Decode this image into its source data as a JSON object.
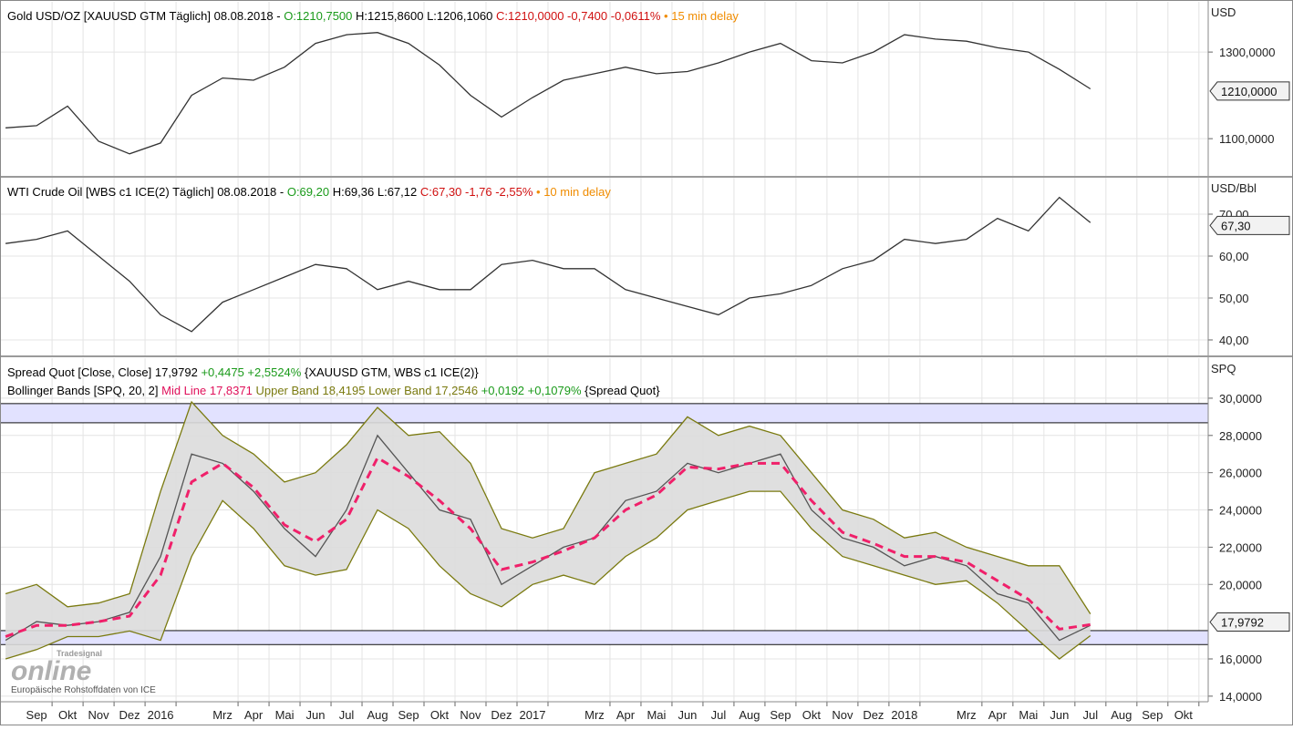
{
  "chart_data": [
    {
      "type": "line",
      "header": [
        [
          {
            "text": "Gold USD/OZ [XAUUSD GTM Täglich] 08.08.2018 - ",
            "color": "#000000"
          },
          {
            "text": "O:1210,7500",
            "color": "#1a9a1a"
          },
          {
            "text": " H:1215,8600 L:1206,1060 ",
            "color": "#000000"
          },
          {
            "text": "C:1210,0000 -0,7400 -0,0611%",
            "color": "#d01010"
          },
          {
            "text": " • 15 min delay",
            "color": "#f08c00"
          }
        ]
      ],
      "unit": "USD",
      "xlim": [
        -1.18,
        37.8
      ],
      "ylim": [
        1014,
        1416
      ],
      "yticks": [
        {
          "value": 1300,
          "label": "1300,0000"
        },
        {
          "value": 1100,
          "label": "1100,0000"
        }
      ],
      "x": [
        -1,
        0,
        1,
        2,
        3,
        4,
        5,
        6,
        7,
        8,
        9,
        10,
        11,
        12,
        13,
        14,
        15,
        16,
        17,
        18,
        19,
        20,
        21,
        22,
        23,
        24,
        25,
        26,
        27,
        28,
        29,
        30,
        31,
        32,
        33,
        34
      ],
      "series": [
        {
          "color": "#333333",
          "values": [
            1125,
            1130,
            1175,
            1094,
            1065,
            1090,
            1200,
            1240,
            1235,
            1265,
            1320,
            1340,
            1345,
            1320,
            1270,
            1200,
            1150,
            1195,
            1235,
            1250,
            1265,
            1250,
            1255,
            1275,
            1300,
            1320,
            1280,
            1275,
            1300,
            1340,
            1330,
            1325,
            1310,
            1300,
            1260,
            1215
          ]
        }
      ],
      "last": {
        "value": 1210,
        "label": "1210,0000"
      }
    },
    {
      "type": "line",
      "header": [
        [
          {
            "text": "WTI Crude Oil [WBS c1 ICE(2) Täglich] 08.08.2018 - ",
            "color": "#000000"
          },
          {
            "text": "O:69,20",
            "color": "#1a9a1a"
          },
          {
            "text": " H:69,36 L:67,12 ",
            "color": "#000000"
          },
          {
            "text": "C:67,30 -1,76 -2,55%",
            "color": "#d01010"
          },
          {
            "text": " • 10 min delay",
            "color": "#f08c00"
          }
        ]
      ],
      "unit": "USD/Bbl",
      "xlim": [
        -1.18,
        37.8
      ],
      "ylim": [
        36.3,
        78.7
      ],
      "yticks": [
        {
          "value": 70,
          "label": "70,00"
        },
        {
          "value": 60,
          "label": "60,00"
        },
        {
          "value": 50,
          "label": "50,00"
        },
        {
          "value": 40,
          "label": "40,00"
        }
      ],
      "x": [
        -1,
        0,
        1,
        2,
        3,
        4,
        5,
        6,
        7,
        8,
        9,
        10,
        11,
        12,
        13,
        14,
        15,
        16,
        17,
        18,
        19,
        20,
        21,
        22,
        23,
        24,
        25,
        26,
        27,
        28,
        29,
        30,
        31,
        32,
        33,
        34
      ],
      "series": [
        {
          "color": "#333333",
          "values": [
            63,
            64,
            66,
            60,
            54,
            46,
            42,
            49,
            52,
            55,
            58,
            57,
            52,
            54,
            52,
            52,
            58,
            59,
            57,
            57,
            52,
            50,
            48,
            46,
            50,
            51,
            53,
            57,
            59,
            64,
            63,
            64,
            69,
            66,
            74,
            68
          ]
        }
      ],
      "last": {
        "value": 67.3,
        "label": "67,30"
      }
    },
    {
      "type": "bollinger",
      "header": [
        [
          {
            "text": "Spread Quot [Close, Close] 17,9792 ",
            "color": "#000000"
          },
          {
            "text": "+0,4475 +2,5524%",
            "color": "#1a9a1a"
          },
          {
            "text": " {XAUUSD GTM, WBS c1 ICE(2)}",
            "color": "#000000"
          }
        ],
        [
          {
            "text": "Bollinger Bands [SPQ, 20, 2] ",
            "color": "#000000"
          },
          {
            "text": "Mid Line 17,8371",
            "color": "#e0105a"
          },
          {
            "text": " Upper Band 18,4195 Lower Band 17,2546",
            "color": "#7a7a10"
          },
          {
            "text": " +0,0192 +0,1079%",
            "color": "#1a9a1a"
          },
          {
            "text": " {Spread Quot}",
            "color": "#000000"
          }
        ]
      ],
      "unit": "SPQ",
      "xlim": [
        -1.18,
        37.8
      ],
      "ylim": [
        13.7,
        32.15
      ],
      "yticks": [
        {
          "value": 30,
          "label": "30,0000"
        },
        {
          "value": 28,
          "label": "28,0000"
        },
        {
          "value": 26,
          "label": "26,0000"
        },
        {
          "value": 24,
          "label": "24,0000"
        },
        {
          "value": 22,
          "label": "22,0000"
        },
        {
          "value": 20,
          "label": "20,0000"
        },
        {
          "value": 16,
          "label": "16,0000"
        },
        {
          "value": 14,
          "label": "14,0000"
        }
      ],
      "xticks": [
        {
          "value": 0,
          "label": "Sep"
        },
        {
          "value": 1,
          "label": "Okt"
        },
        {
          "value": 2,
          "label": "Nov"
        },
        {
          "value": 3,
          "label": "Dez"
        },
        {
          "value": 4,
          "label": "2016"
        },
        {
          "value": 6,
          "label": "Mrz"
        },
        {
          "value": 7,
          "label": "Apr"
        },
        {
          "value": 8,
          "label": "Mai"
        },
        {
          "value": 9,
          "label": "Jun"
        },
        {
          "value": 10,
          "label": "Jul"
        },
        {
          "value": 11,
          "label": "Aug"
        },
        {
          "value": 12,
          "label": "Sep"
        },
        {
          "value": 13,
          "label": "Okt"
        },
        {
          "value": 14,
          "label": "Nov"
        },
        {
          "value": 15,
          "label": "Dez"
        },
        {
          "value": 16,
          "label": "2017"
        },
        {
          "value": 18,
          "label": "Mrz"
        },
        {
          "value": 19,
          "label": "Apr"
        },
        {
          "value": 20,
          "label": "Mai"
        },
        {
          "value": 21,
          "label": "Jun"
        },
        {
          "value": 22,
          "label": "Jul"
        },
        {
          "value": 23,
          "label": "Aug"
        },
        {
          "value": 24,
          "label": "Sep"
        },
        {
          "value": 25,
          "label": "Okt"
        },
        {
          "value": 26,
          "label": "Nov"
        },
        {
          "value": 27,
          "label": "Dez"
        },
        {
          "value": 28,
          "label": "2018"
        },
        {
          "value": 30,
          "label": "Mrz"
        },
        {
          "value": 31,
          "label": "Apr"
        },
        {
          "value": 32,
          "label": "Mai"
        },
        {
          "value": 33,
          "label": "Jun"
        },
        {
          "value": 34,
          "label": "Jul"
        },
        {
          "value": 35,
          "label": "Aug"
        },
        {
          "value": 36,
          "label": "Sep"
        },
        {
          "value": 37,
          "label": "Okt"
        }
      ],
      "x": [
        -1,
        0,
        1,
        2,
        3,
        4,
        5,
        6,
        7,
        8,
        9,
        10,
        11,
        12,
        13,
        14,
        15,
        16,
        17,
        18,
        19,
        20,
        21,
        22,
        23,
        24,
        25,
        26,
        27,
        28,
        29,
        30,
        31,
        32,
        33,
        34
      ],
      "zones": [
        [
          28.68,
          29.71
        ],
        [
          16.77,
          17.52
        ]
      ],
      "band_color": "#dcdcdc",
      "series": [
        {
          "color": "#7a7a10",
          "values": [
            19.5,
            20.0,
            18.8,
            19.0,
            19.5,
            25.0,
            29.8,
            28.0,
            27.0,
            25.5,
            26.0,
            27.5,
            29.5,
            28.0,
            28.2,
            26.5,
            23.0,
            22.5,
            23.0,
            26.0,
            26.5,
            27.0,
            29.0,
            28.0,
            28.5,
            28.0,
            26.0,
            24.0,
            23.5,
            22.5,
            22.8,
            22.0,
            21.5,
            21.0,
            21.0,
            18.42
          ]
        },
        {
          "color": "#7a7a10",
          "values": [
            16.0,
            16.5,
            17.2,
            17.2,
            17.5,
            17.0,
            21.5,
            24.5,
            23.0,
            21.0,
            20.5,
            20.8,
            24.0,
            23.0,
            21.0,
            19.5,
            18.8,
            20.0,
            20.5,
            20.0,
            21.5,
            22.5,
            24.0,
            24.5,
            25.0,
            25.0,
            23.0,
            21.5,
            21.0,
            20.5,
            20.0,
            20.2,
            19.0,
            17.5,
            16.0,
            17.25
          ]
        },
        {
          "color": "#555555",
          "values": [
            17.0,
            18.0,
            17.8,
            18.0,
            18.5,
            21.5,
            27.0,
            26.5,
            25.0,
            23.0,
            21.5,
            24.0,
            28.0,
            26.0,
            24.0,
            23.5,
            20.0,
            21.0,
            22.0,
            22.5,
            24.5,
            25.0,
            26.5,
            26.0,
            26.5,
            27.0,
            24.0,
            22.5,
            22.0,
            21.0,
            21.5,
            21.0,
            19.5,
            19.0,
            17.0,
            17.8
          ]
        },
        {
          "color": "#f0206a",
          "dashed": true,
          "values": [
            17.2,
            17.8,
            17.8,
            18.0,
            18.3,
            20.5,
            25.5,
            26.5,
            25.2,
            23.2,
            22.3,
            23.5,
            26.8,
            25.8,
            24.5,
            23.0,
            20.8,
            21.2,
            21.8,
            22.5,
            24.0,
            24.8,
            26.3,
            26.2,
            26.5,
            26.5,
            24.5,
            22.8,
            22.2,
            21.5,
            21.5,
            21.2,
            20.2,
            19.2,
            17.6,
            17.84
          ]
        }
      ],
      "last": {
        "value": 17.9792,
        "label": "17,9792"
      },
      "watermark": [
        "Tradesignal",
        "online"
      ],
      "source": "Europäische Rohstoffdaten von ICE"
    }
  ]
}
